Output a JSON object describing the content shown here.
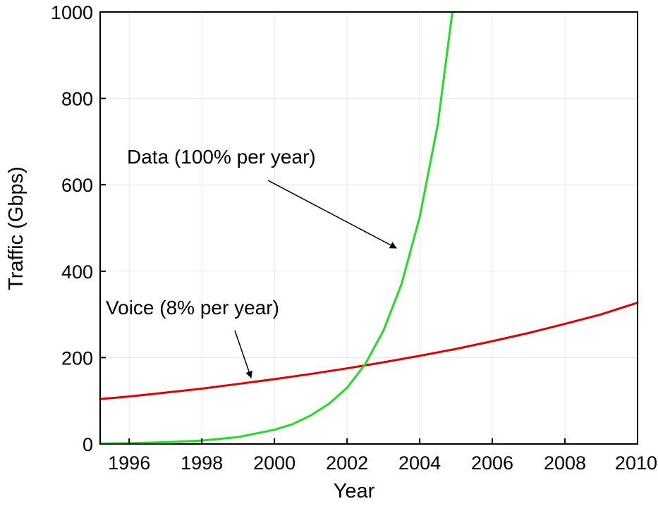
{
  "chart_data": {
    "type": "line",
    "title": "",
    "xlabel": "Year",
    "ylabel": "Traffic (Gbps)",
    "xlim": [
      1995.2,
      2010
    ],
    "ylim": [
      0,
      1000
    ],
    "x_ticks": [
      "1996",
      "1998",
      "2000",
      "2002",
      "2004",
      "2006",
      "2008",
      "2010"
    ],
    "y_ticks": [
      "0",
      "200",
      "400",
      "600",
      "800",
      "1000"
    ],
    "grid": true,
    "series": [
      {
        "name": "Voice (8% per year)",
        "color": "#e00000",
        "x": [
          1995.2,
          1996,
          1997,
          1998,
          1999,
          2000,
          2001,
          2002,
          2003,
          2004,
          2005,
          2006,
          2007,
          2008,
          2009,
          2010
        ],
        "y": [
          104,
          110,
          119,
          128,
          139,
          150,
          162,
          175,
          189,
          204,
          220,
          238,
          257,
          278,
          300,
          327
        ]
      },
      {
        "name": "Data (100% per year)",
        "color": "#22dd22",
        "x": [
          1995.2,
          1996,
          1997,
          1998,
          1999,
          2000,
          2000.5,
          2001,
          2001.5,
          2002,
          2002.5,
          2003,
          2003.5,
          2004,
          2004.5,
          2004.9
        ],
        "y": [
          1,
          2,
          4,
          8,
          16,
          33,
          46,
          66,
          93,
          130,
          185,
          262,
          370,
          525,
          740,
          1000
        ]
      }
    ],
    "annotations": [
      {
        "text": "Data (100% per year)",
        "points_to": "Data (100% per year)"
      },
      {
        "text": "Voice (8% per year)",
        "points_to": "Voice (8% per year)"
      }
    ]
  }
}
